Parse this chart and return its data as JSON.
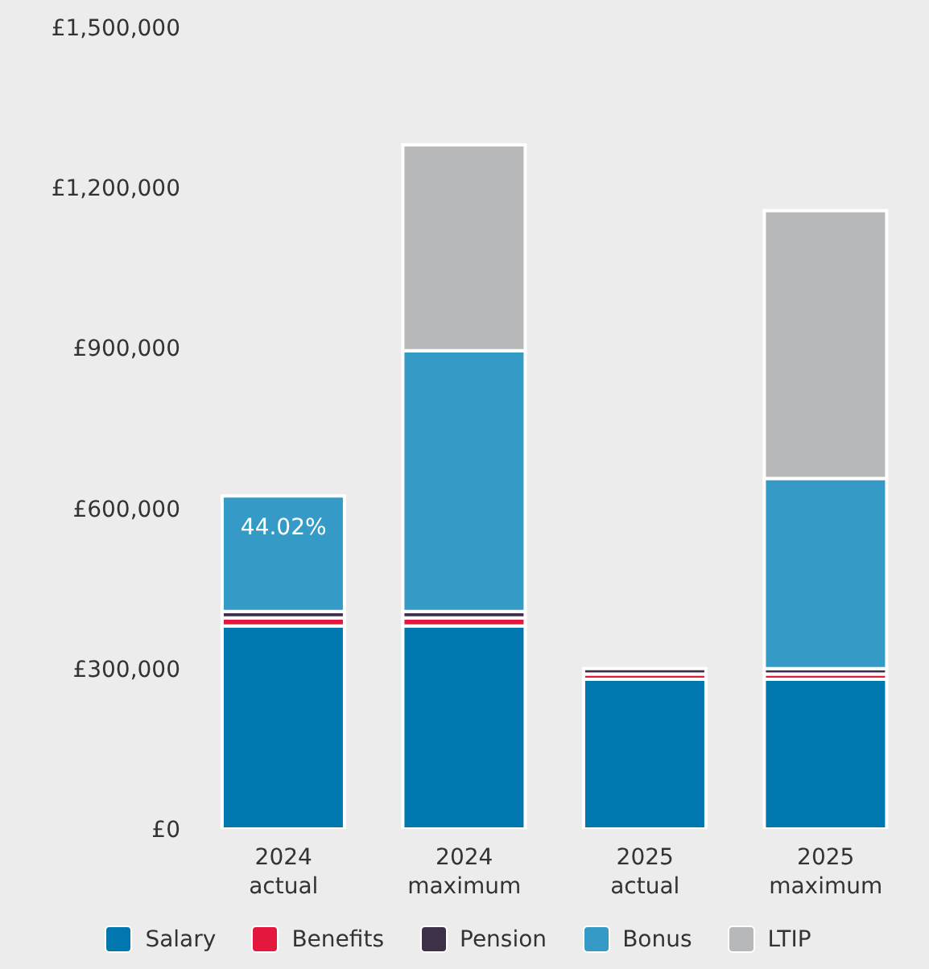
{
  "chart_data": {
    "type": "bar",
    "stacked": true,
    "categories": [
      "2024\nactual",
      "2024\nmaximum",
      "2025\nactual",
      "2025\nmaximum"
    ],
    "series": [
      {
        "name": "Salary",
        "color": "#0077ae",
        "values": [
          380000,
          380000,
          280000,
          280000
        ]
      },
      {
        "name": "Benefits",
        "color": "#e4173e",
        "values": [
          15000,
          15000,
          10000,
          10000
        ]
      },
      {
        "name": "Pension",
        "color": "#3d3148",
        "values": [
          12000,
          12000,
          10000,
          10000
        ]
      },
      {
        "name": "Bonus",
        "color": "#369ac6",
        "values": [
          216000,
          488000,
          null,
          356000
        ]
      },
      {
        "name": "LTIP",
        "color": "#b7b8ba",
        "values": [
          null,
          385000,
          null,
          501000
        ]
      }
    ],
    "ylim": [
      0,
      1500000
    ],
    "yticks": [
      {
        "value": 0,
        "label": "£0"
      },
      {
        "value": 300000,
        "label": "£300,000"
      },
      {
        "value": 600000,
        "label": "£600,000"
      },
      {
        "value": 900000,
        "label": "£900,000"
      },
      {
        "value": 1200000,
        "label": "£1,200,000"
      },
      {
        "value": 1500000,
        "label": "£1,500,000"
      }
    ],
    "annotations": [
      {
        "text": "44.02%",
        "x": "2024\nactual",
        "y": 623000
      }
    ],
    "grid": false,
    "legend": "bottom"
  }
}
